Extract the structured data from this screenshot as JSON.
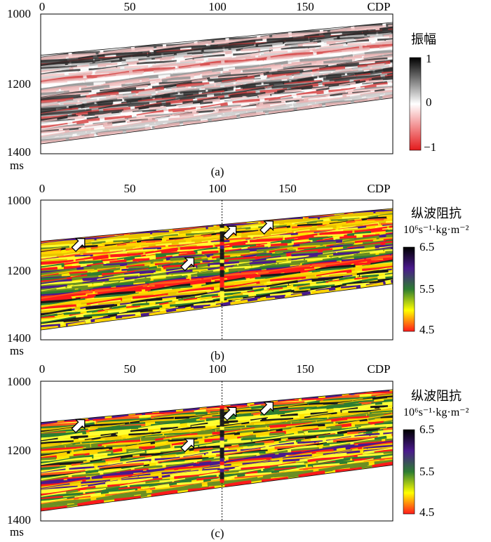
{
  "chart_data": [
    {
      "type": "heatmap",
      "caption": "(a)",
      "xlabel": "CDP",
      "ylabel": "ms",
      "xlim": [
        0,
        200
      ],
      "ylim": [
        1000,
        1400
      ],
      "x_ticks": [
        "0",
        "50",
        "100",
        "150"
      ],
      "y_ticks": [
        "1000",
        "1200",
        "1400"
      ],
      "colorbar": {
        "title": "振幅",
        "unit": "",
        "ticks": [
          "1",
          "0",
          "−1"
        ],
        "range": [
          -1,
          1
        ],
        "colors": [
          "#e41a1c",
          "#ffffff",
          "#000000"
        ]
      },
      "well": null,
      "arrows": []
    },
    {
      "type": "heatmap",
      "caption": "(b)",
      "xlabel": "CDP",
      "ylabel": "ms",
      "xlim": [
        0,
        200
      ],
      "ylim": [
        1000,
        1400
      ],
      "x_ticks": [
        "0",
        "50",
        "100",
        "150"
      ],
      "y_ticks": [
        "1000",
        "1200",
        "1400"
      ],
      "colorbar": {
        "title": "纵波阻抗",
        "unit": "10⁶s⁻¹·kg·m⁻²",
        "ticks": [
          "6.5",
          "5.5",
          "4.5"
        ],
        "range": [
          4.5,
          6.5
        ],
        "colors": [
          "#ff1a1a",
          "#ffff00",
          "#2e7d32",
          "#4a1a8c",
          "#000000"
        ]
      },
      "well": {
        "cdp": 103
      },
      "arrows": [
        {
          "cdp": 25,
          "t": 1110
        },
        {
          "cdp": 87,
          "t": 1165
        },
        {
          "cdp": 111,
          "t": 1075
        },
        {
          "cdp": 132,
          "t": 1060
        }
      ]
    },
    {
      "type": "heatmap",
      "caption": "(c)",
      "xlabel": "CDP",
      "ylabel": "ms",
      "xlim": [
        0,
        200
      ],
      "ylim": [
        1000,
        1400
      ],
      "x_ticks": [
        "0",
        "50",
        "100",
        "150"
      ],
      "y_ticks": [
        "1000",
        "1200",
        "1400"
      ],
      "colorbar": {
        "title": "纵波阻抗",
        "unit": "10⁶s⁻¹·kg·m⁻²",
        "ticks": [
          "6.5",
          "5.5",
          "4.5"
        ],
        "range": [
          4.5,
          6.5
        ],
        "colors": [
          "#ff1a1a",
          "#ffff00",
          "#2e7d32",
          "#4a1a8c",
          "#000000"
        ]
      },
      "well": {
        "cdp": 103
      },
      "arrows": [
        {
          "cdp": 25,
          "t": 1110
        },
        {
          "cdp": 87,
          "t": 1165
        },
        {
          "cdp": 111,
          "t": 1075
        },
        {
          "cdp": 132,
          "t": 1060
        }
      ]
    }
  ]
}
